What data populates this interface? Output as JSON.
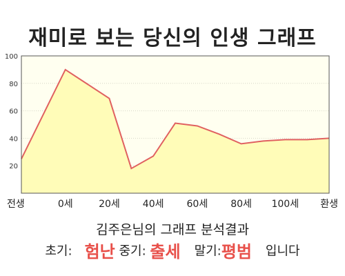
{
  "title": "재미로 보는 당신의 인생 그래프",
  "subtitle": "김주은님의 그래프 분석결과",
  "result": {
    "early_label": "초기:",
    "early_value": "험난",
    "mid_label": "중기:",
    "mid_value": "출세",
    "late_label": "말기:",
    "late_value": "평범",
    "suffix": "입니다"
  },
  "colors": {
    "line": "#e06060",
    "fill": "#fffcb8",
    "plot_bg": "#fffff0",
    "highlight": "#e8504a"
  },
  "chart_data": {
    "type": "area",
    "x_tick_labels": [
      "전생",
      "0세",
      "20세",
      "40세",
      "60세",
      "80세",
      "100세",
      "환생"
    ],
    "x": [
      -20,
      0,
      20,
      30,
      40,
      50,
      60,
      70,
      80,
      90,
      100,
      110,
      120
    ],
    "y": [
      25,
      90,
      69,
      18,
      27,
      51,
      49,
      43,
      36,
      38,
      39,
      39,
      40
    ],
    "xlim": [
      -20,
      120
    ],
    "ylim": [
      0,
      100
    ],
    "y_ticks": [
      20,
      40,
      60,
      80,
      100
    ],
    "grid": true
  }
}
